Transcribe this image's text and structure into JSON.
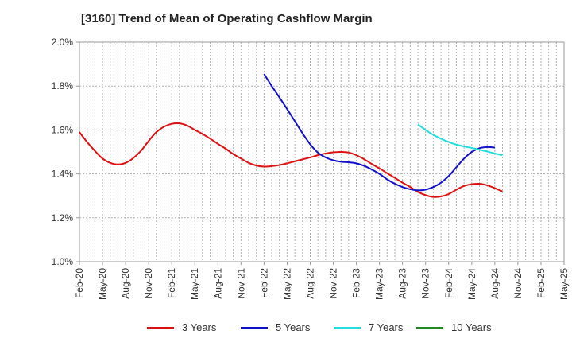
{
  "chart_data": {
    "type": "line",
    "title": "[3160]  Trend of Mean of Operating Cashflow Margin",
    "xlabel": "",
    "ylabel": "",
    "ylim": [
      1.0,
      2.0
    ],
    "yticks": [
      "1.0%",
      "1.2%",
      "1.4%",
      "1.6%",
      "1.8%",
      "2.0%"
    ],
    "x_categories": [
      "Feb-20",
      "May-20",
      "Aug-20",
      "Nov-20",
      "Feb-21",
      "May-21",
      "Aug-21",
      "Nov-21",
      "Feb-22",
      "May-22",
      "Aug-22",
      "Nov-22",
      "Feb-23",
      "May-23",
      "Aug-23",
      "Nov-23",
      "Feb-24",
      "May-24",
      "Aug-24",
      "Nov-24",
      "Feb-25",
      "May-25"
    ],
    "grid": true,
    "legend_position": "bottom",
    "series": [
      {
        "name": "3 Years",
        "color": "#dd1111",
        "points": [
          [
            "Feb-20",
            1.59
          ],
          [
            "Mar-20",
            1.545
          ],
          [
            "Apr-20",
            1.505
          ],
          [
            "May-20",
            1.47
          ],
          [
            "Jun-20",
            1.45
          ],
          [
            "Jul-20",
            1.443
          ],
          [
            "Aug-20",
            1.45
          ],
          [
            "Sep-20",
            1.472
          ],
          [
            "Oct-20",
            1.505
          ],
          [
            "Nov-20",
            1.55
          ],
          [
            "Dec-20",
            1.59
          ],
          [
            "Jan-21",
            1.615
          ],
          [
            "Feb-21",
            1.628
          ],
          [
            "Mar-21",
            1.63
          ],
          [
            "Apr-21",
            1.62
          ],
          [
            "May-21",
            1.6
          ],
          [
            "Jun-21",
            1.582
          ],
          [
            "Jul-21",
            1.56
          ],
          [
            "Aug-21",
            1.537
          ],
          [
            "Sep-21",
            1.515
          ],
          [
            "Oct-21",
            1.49
          ],
          [
            "Nov-21",
            1.47
          ],
          [
            "Dec-21",
            1.45
          ],
          [
            "Jan-22",
            1.438
          ],
          [
            "Feb-22",
            1.433
          ],
          [
            "Mar-22",
            1.435
          ],
          [
            "Apr-22",
            1.44
          ],
          [
            "May-22",
            1.448
          ],
          [
            "Jun-22",
            1.457
          ],
          [
            "Jul-22",
            1.466
          ],
          [
            "Aug-22",
            1.475
          ],
          [
            "Sep-22",
            1.485
          ],
          [
            "Oct-22",
            1.493
          ],
          [
            "Nov-22",
            1.498
          ],
          [
            "Dec-22",
            1.5
          ],
          [
            "Jan-23",
            1.497
          ],
          [
            "Feb-23",
            1.485
          ],
          [
            "Mar-23",
            1.467
          ],
          [
            "Apr-23",
            1.445
          ],
          [
            "May-23",
            1.425
          ],
          [
            "Jun-23",
            1.403
          ],
          [
            "Jul-23",
            1.382
          ],
          [
            "Aug-23",
            1.36
          ],
          [
            "Sep-23",
            1.34
          ],
          [
            "Oct-23",
            1.318
          ],
          [
            "Nov-23",
            1.303
          ],
          [
            "Dec-23",
            1.295
          ],
          [
            "Jan-24",
            1.297
          ],
          [
            "Feb-24",
            1.308
          ],
          [
            "Mar-24",
            1.328
          ],
          [
            "Apr-24",
            1.345
          ],
          [
            "May-24",
            1.353
          ],
          [
            "Jun-24",
            1.355
          ],
          [
            "Jul-24",
            1.348
          ],
          [
            "Aug-24",
            1.335
          ],
          [
            "Sep-24",
            1.32
          ]
        ]
      },
      {
        "name": "5 Years",
        "color": "#1111cc",
        "points": [
          [
            "Feb-22",
            1.855
          ],
          [
            "Mar-22",
            1.8
          ],
          [
            "Apr-22",
            1.748
          ],
          [
            "May-22",
            1.695
          ],
          [
            "Jun-22",
            1.64
          ],
          [
            "Jul-22",
            1.585
          ],
          [
            "Aug-22",
            1.535
          ],
          [
            "Sep-22",
            1.497
          ],
          [
            "Oct-22",
            1.475
          ],
          [
            "Nov-22",
            1.462
          ],
          [
            "Dec-22",
            1.455
          ],
          [
            "Jan-23",
            1.453
          ],
          [
            "Feb-23",
            1.448
          ],
          [
            "Mar-23",
            1.437
          ],
          [
            "Apr-23",
            1.42
          ],
          [
            "May-23",
            1.4
          ],
          [
            "Jun-23",
            1.375
          ],
          [
            "Jul-23",
            1.355
          ],
          [
            "Aug-23",
            1.34
          ],
          [
            "Sep-23",
            1.33
          ],
          [
            "Oct-23",
            1.325
          ],
          [
            "Nov-23",
            1.328
          ],
          [
            "Dec-23",
            1.34
          ],
          [
            "Jan-24",
            1.36
          ],
          [
            "Feb-24",
            1.39
          ],
          [
            "Mar-24",
            1.43
          ],
          [
            "Apr-24",
            1.47
          ],
          [
            "May-24",
            1.5
          ],
          [
            "Jun-24",
            1.517
          ],
          [
            "Jul-24",
            1.522
          ],
          [
            "Aug-24",
            1.52
          ]
        ]
      },
      {
        "name": "7 Years",
        "color": "#22dddd",
        "points": [
          [
            "Oct-23",
            1.625
          ],
          [
            "Nov-23",
            1.6
          ],
          [
            "Dec-23",
            1.578
          ],
          [
            "Jan-24",
            1.56
          ],
          [
            "Feb-24",
            1.545
          ],
          [
            "Mar-24",
            1.533
          ],
          [
            "Apr-24",
            1.525
          ],
          [
            "May-24",
            1.518
          ],
          [
            "Jun-24",
            1.51
          ],
          [
            "Jul-24",
            1.502
          ],
          [
            "Aug-24",
            1.493
          ],
          [
            "Sep-24",
            1.485
          ]
        ]
      },
      {
        "name": "10 Years",
        "color": "#228822",
        "points": []
      }
    ]
  }
}
